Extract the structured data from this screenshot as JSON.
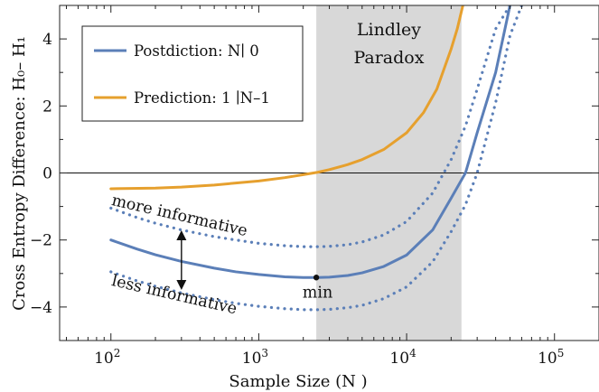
{
  "chart_data": {
    "type": "line",
    "x_scale": "log",
    "xlabel": "Sample Size (N )",
    "ylabel": "Cross Entropy Difference:  H₀– H₁",
    "xlim": [
      45,
      200000
    ],
    "ylim": [
      -5,
      5
    ],
    "x_ticks": [
      100,
      1000,
      10000,
      100000
    ],
    "x_tick_labels": [
      {
        "base": "10",
        "exp": "2"
      },
      {
        "base": "10",
        "exp": "3"
      },
      {
        "base": "10",
        "exp": "4"
      },
      {
        "base": "10",
        "exp": "5"
      }
    ],
    "y_ticks": [
      -4,
      -2,
      0,
      2,
      4
    ],
    "y_tick_labels": [
      "−4",
      "−2",
      "0",
      "2",
      "4"
    ],
    "grid": false,
    "legend_position": "top-left",
    "zero_line": true,
    "shaded_region": {
      "x": [
        2450,
        23500
      ],
      "label_lines": [
        "Lindley",
        "Paradox"
      ],
      "color": "#d8d8d8"
    },
    "series": [
      {
        "name": "Postdiction: N∣ 0",
        "color": "#5b7fb8",
        "style": "solid",
        "x": [
          100,
          150,
          200,
          300,
          500,
          700,
          1000,
          1500,
          2000,
          2500,
          3000,
          4000,
          5000,
          7000,
          10000,
          15000,
          20000,
          25000,
          30000,
          40000,
          50000
        ],
        "y": [
          -2.0,
          -2.27,
          -2.44,
          -2.64,
          -2.84,
          -2.95,
          -3.03,
          -3.1,
          -3.12,
          -3.12,
          -3.11,
          -3.06,
          -2.98,
          -2.79,
          -2.45,
          -1.7,
          -0.75,
          0.0,
          1.2,
          3.0,
          5.0
        ]
      },
      {
        "name": "Prediction:  1 ∣N–1",
        "color": "#e6a02e",
        "style": "solid",
        "x": [
          100,
          200,
          300,
          500,
          700,
          1000,
          1500,
          2000,
          2500,
          3000,
          4000,
          5000,
          7000,
          10000,
          13000,
          16000,
          20000,
          22000,
          24000
        ],
        "y": [
          -0.47,
          -0.45,
          -0.42,
          -0.36,
          -0.3,
          -0.24,
          -0.14,
          -0.05,
          0.02,
          0.1,
          0.25,
          0.4,
          0.7,
          1.2,
          1.8,
          2.5,
          3.7,
          4.3,
          5.0
        ]
      },
      {
        "name": "",
        "color": "#5b7fb8",
        "style": "dotted",
        "x": [
          100,
          150,
          200,
          300,
          500,
          700,
          1000,
          1500,
          2000,
          2500,
          3000,
          4000,
          5000,
          7000,
          10000,
          15000,
          20000,
          25000,
          30000,
          40000,
          50000
        ],
        "y": [
          -1.05,
          -1.33,
          -1.5,
          -1.7,
          -1.9,
          -2.0,
          -2.1,
          -2.17,
          -2.2,
          -2.2,
          -2.19,
          -2.14,
          -2.06,
          -1.85,
          -1.45,
          -0.6,
          0.4,
          1.4,
          2.5,
          4.3,
          5.0
        ]
      },
      {
        "name": "",
        "color": "#5b7fb8",
        "style": "dotted",
        "x": [
          100,
          150,
          200,
          300,
          500,
          700,
          1000,
          1500,
          2000,
          2500,
          3000,
          4000,
          5000,
          7000,
          10000,
          15000,
          20000,
          25000,
          30000,
          40000,
          50000,
          60000
        ],
        "y": [
          -2.95,
          -3.22,
          -3.38,
          -3.58,
          -3.78,
          -3.89,
          -3.98,
          -4.05,
          -4.08,
          -4.08,
          -4.07,
          -4.02,
          -3.95,
          -3.75,
          -3.4,
          -2.65,
          -1.75,
          -0.95,
          0.0,
          2.1,
          4.1,
          5.0
        ]
      }
    ],
    "annotations": [
      {
        "text": "more informative",
        "x": 100,
        "y": -0.95,
        "angle_deg": 13,
        "role": "upper dotted curve label"
      },
      {
        "text": "less informative",
        "x": 100,
        "y": -3.35,
        "angle_deg": 13,
        "role": "lower dotted curve label"
      },
      {
        "text": "min",
        "x": 2500,
        "y": -3.12,
        "role": "minimum marker label"
      }
    ],
    "min_point": {
      "x": 2450,
      "y": -3.12
    },
    "double_arrow": {
      "x": 300,
      "y_top": -1.7,
      "y_bottom": -3.5
    }
  }
}
